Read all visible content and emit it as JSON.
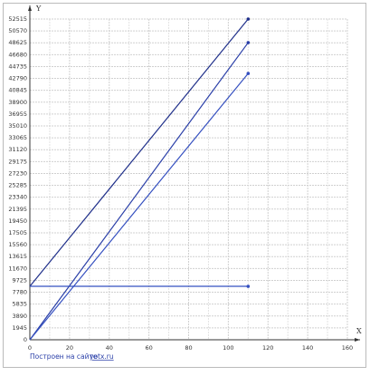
{
  "chart_data": {
    "type": "line",
    "x_label": "X",
    "y_label": "Y",
    "footer": {
      "text": "Построен на сайте",
      "link": "yotx.ru"
    },
    "series": [
      {
        "color": "#1f2f8a",
        "x": [
          0,
          110
        ],
        "values": [
          8750,
          52515
        ]
      },
      {
        "color": "#2a3fa8",
        "x": [
          0,
          110
        ],
        "values": [
          0,
          48650
        ]
      },
      {
        "color": "#3550c0",
        "x": [
          0,
          110
        ],
        "values": [
          0,
          43600
        ]
      },
      {
        "color": "#3550c0",
        "x": [
          0,
          110
        ],
        "values": [
          8750,
          8750
        ]
      }
    ],
    "xlim": [
      0,
      160
    ],
    "xticks": [
      0,
      20,
      40,
      60,
      80,
      100,
      120,
      140,
      160
    ],
    "ylim": [
      0,
      52515
    ],
    "yticks": [
      0,
      1945,
      3890,
      5835,
      7780,
      9725,
      11670,
      13615,
      15560,
      17505,
      19450,
      21395,
      23340,
      25285,
      27230,
      29175,
      31120,
      33065,
      35010,
      36955,
      38900,
      40845,
      42790,
      44735,
      46680,
      48625,
      50570,
      52515
    ],
    "grid": true
  }
}
